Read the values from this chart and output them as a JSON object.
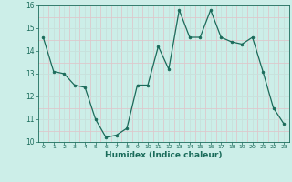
{
  "x": [
    0,
    1,
    2,
    3,
    4,
    5,
    6,
    7,
    8,
    9,
    10,
    11,
    12,
    13,
    14,
    15,
    16,
    17,
    18,
    19,
    20,
    21,
    22,
    23
  ],
  "y": [
    14.6,
    13.1,
    13.0,
    12.5,
    12.4,
    11.0,
    10.2,
    10.3,
    10.6,
    12.5,
    12.5,
    14.2,
    13.2,
    15.8,
    14.6,
    14.6,
    15.8,
    14.6,
    14.4,
    14.3,
    14.6,
    13.1,
    11.5,
    10.8
  ],
  "xlabel": "Humidex (Indice chaleur)",
  "ylim": [
    10,
    16
  ],
  "xlim": [
    -0.5,
    23.5
  ],
  "yticks": [
    10,
    11,
    12,
    13,
    14,
    15,
    16
  ],
  "xticks": [
    0,
    1,
    2,
    3,
    4,
    5,
    6,
    7,
    8,
    9,
    10,
    11,
    12,
    13,
    14,
    15,
    16,
    17,
    18,
    19,
    20,
    21,
    22,
    23
  ],
  "line_color": "#1a6b5a",
  "bg_color": "#cceee8",
  "grid_major_color": "#c8e0dc",
  "grid_minor_color": "#ddc8cc"
}
